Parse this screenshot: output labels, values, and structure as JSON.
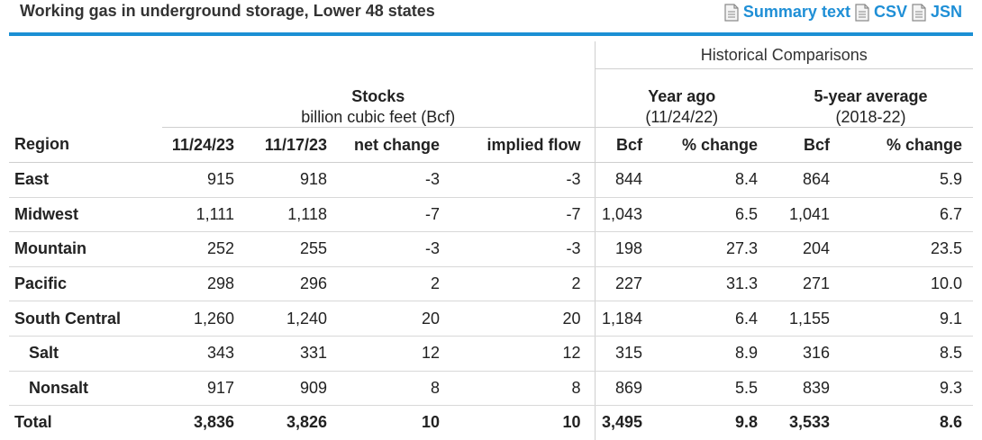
{
  "title": "Working gas in underground storage, Lower 48 states",
  "links": [
    {
      "label": "Summary text",
      "icon": "document-icon"
    },
    {
      "label": "CSV",
      "icon": "document-icon"
    },
    {
      "label": "JSN",
      "icon": "document-icon"
    }
  ],
  "colors": {
    "accent": "#1b8fd4",
    "link": "#1f8fd6"
  },
  "headers": {
    "historical": "Historical Comparisons",
    "stocks": "Stocks",
    "stocks_sub": "billion cubic feet (Bcf)",
    "year_ago": "Year ago",
    "year_ago_sub": "(11/24/22)",
    "five_year": "5-year average",
    "five_year_sub": "(2018-22)",
    "columns": [
      "Region",
      "11/24/23",
      "11/17/23",
      "net change",
      "implied flow",
      "Bcf",
      "% change",
      "Bcf",
      "% change"
    ]
  },
  "rows": [
    {
      "region": "East",
      "cells": [
        "915",
        "918",
        "-3",
        "-3",
        "844",
        "8.4",
        "864",
        "5.9"
      ]
    },
    {
      "region": "Midwest",
      "cells": [
        "1,111",
        "1,118",
        "-7",
        "-7",
        "1,043",
        "6.5",
        "1,041",
        "6.7"
      ]
    },
    {
      "region": "Mountain",
      "cells": [
        "252",
        "255",
        "-3",
        "-3",
        "198",
        "27.3",
        "204",
        "23.5"
      ]
    },
    {
      "region": "Pacific",
      "cells": [
        "298",
        "296",
        "2",
        "2",
        "227",
        "31.3",
        "271",
        "10.0"
      ]
    },
    {
      "region": "South Central",
      "cells": [
        "1,260",
        "1,240",
        "20",
        "20",
        "1,184",
        "6.4",
        "1,155",
        "9.1"
      ]
    },
    {
      "region": "Salt",
      "cells": [
        "343",
        "331",
        "12",
        "12",
        "315",
        "8.9",
        "316",
        "8.5"
      ]
    },
    {
      "region": "Nonsalt",
      "cells": [
        "917",
        "909",
        "8",
        "8",
        "869",
        "5.5",
        "839",
        "9.3"
      ]
    },
    {
      "region": "Total",
      "cells": [
        "3,836",
        "3,826",
        "10",
        "10",
        "3,495",
        "9.8",
        "3,533",
        "8.6"
      ]
    }
  ]
}
